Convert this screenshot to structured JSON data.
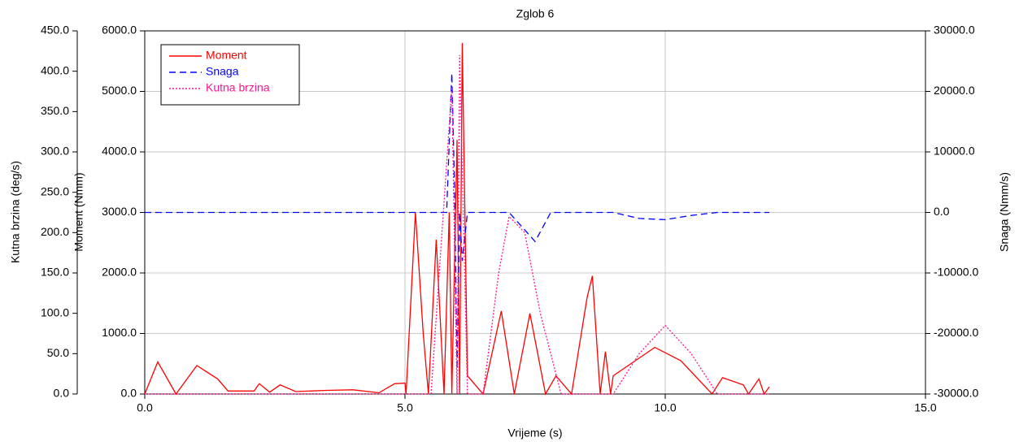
{
  "chart_data": {
    "type": "line",
    "title": "Zglob 6",
    "xlabel": "Vrijeme (s)",
    "ylabel": "Moment (Nmm)",
    "y2label": "Snaga (Nmm/s)",
    "y3label": "Kutna brzina (deg/s)",
    "xlim": [
      0,
      15
    ],
    "xticks": [
      {
        "value": 0,
        "label": "0.0"
      },
      {
        "value": 5,
        "label": "5.0"
      },
      {
        "value": 10,
        "label": "10.0"
      },
      {
        "value": 15,
        "label": "15.0"
      }
    ],
    "ylim": [
      0,
      6000
    ],
    "yticks": [
      {
        "value": 0,
        "label": "0.0"
      },
      {
        "value": 1000,
        "label": "1000.0"
      },
      {
        "value": 2000,
        "label": "2000.0"
      },
      {
        "value": 3000,
        "label": "3000.0"
      },
      {
        "value": 4000,
        "label": "4000.0"
      },
      {
        "value": 5000,
        "label": "5000.0"
      },
      {
        "value": 6000,
        "label": "6000.0"
      }
    ],
    "y2lim": [
      -30000,
      30000
    ],
    "y2ticks": [
      {
        "value": -30000,
        "label": "-30000.0"
      },
      {
        "value": -20000,
        "label": "-20000.0"
      },
      {
        "value": -10000,
        "label": "-10000.0"
      },
      {
        "value": 0,
        "label": "0.0"
      },
      {
        "value": 10000,
        "label": "10000.0"
      },
      {
        "value": 20000,
        "label": "20000.0"
      },
      {
        "value": 30000,
        "label": "30000.0"
      }
    ],
    "y3lim": [
      0,
      450
    ],
    "y3ticks": [
      {
        "value": 0,
        "label": "0.0"
      },
      {
        "value": 50,
        "label": "50.0"
      },
      {
        "value": 100,
        "label": "100.0"
      },
      {
        "value": 150,
        "label": "150.0"
      },
      {
        "value": 200,
        "label": "200.0"
      },
      {
        "value": 250,
        "label": "250.0"
      },
      {
        "value": 300,
        "label": "300.0"
      },
      {
        "value": 350,
        "label": "350.0"
      },
      {
        "value": 400,
        "label": "400.0"
      },
      {
        "value": 450,
        "label": "450.0"
      }
    ],
    "grid": true,
    "legend": "upper left",
    "series": [
      {
        "name": "Moment",
        "color": "#ff0000",
        "dash": "solid",
        "axis": "y",
        "x": [
          0,
          0.25,
          0.6,
          1.0,
          1.4,
          1.6,
          2.1,
          2.2,
          2.4,
          2.6,
          2.9,
          3.5,
          4.0,
          4.5,
          4.8,
          5.0,
          5.02,
          5.2,
          5.35,
          5.45,
          5.6,
          5.75,
          5.85,
          5.9,
          6.0,
          6.05,
          6.1,
          6.2,
          6.4,
          6.5,
          6.85,
          7.1,
          7.4,
          7.7,
          7.9,
          8.2,
          8.5,
          8.6,
          8.75,
          8.85,
          8.95,
          9.0,
          9.8,
          10.3,
          10.9,
          11.1,
          11.5,
          11.6,
          11.8,
          11.9,
          12.0
        ],
        "values": [
          0,
          530,
          0,
          470,
          250,
          50,
          50,
          170,
          30,
          150,
          40,
          60,
          70,
          20,
          170,
          180,
          0,
          3000,
          1000,
          0,
          2550,
          0,
          3000,
          0,
          4200,
          0,
          5800,
          300,
          100,
          0,
          1370,
          0,
          1330,
          0,
          300,
          0,
          1600,
          1950,
          0,
          700,
          0,
          300,
          770,
          550,
          0,
          270,
          150,
          0,
          250,
          0,
          120
        ]
      },
      {
        "name": "Snaga",
        "color": "#0000ff",
        "dash": "dash",
        "axis": "y2",
        "x": [
          0,
          5.5,
          5.8,
          5.9,
          5.95,
          6.0,
          6.05,
          6.1,
          6.2,
          7.0,
          7.5,
          7.8,
          8.5,
          9.0,
          9.5,
          10.0,
          10.5,
          11.0,
          12.0
        ],
        "values": [
          0,
          0,
          0,
          23000,
          5000,
          -26000,
          0,
          -8000,
          0,
          0,
          -4800,
          0,
          0,
          0,
          -1000,
          -1200,
          -500,
          0,
          0
        ]
      },
      {
        "name": "Kutna brzina",
        "color": "#ff1493",
        "dash": "dot",
        "axis": "y3",
        "x": [
          0,
          5.5,
          5.9,
          6.0,
          6.05,
          6.2,
          6.5,
          6.8,
          7.0,
          7.3,
          7.6,
          8.0,
          9.0,
          9.5,
          10.0,
          10.5,
          11.0,
          12.0
        ],
        "values": [
          0,
          0,
          380,
          0,
          420,
          0,
          0,
          150,
          220,
          200,
          100,
          0,
          0,
          50,
          85,
          50,
          0,
          0
        ]
      }
    ]
  }
}
